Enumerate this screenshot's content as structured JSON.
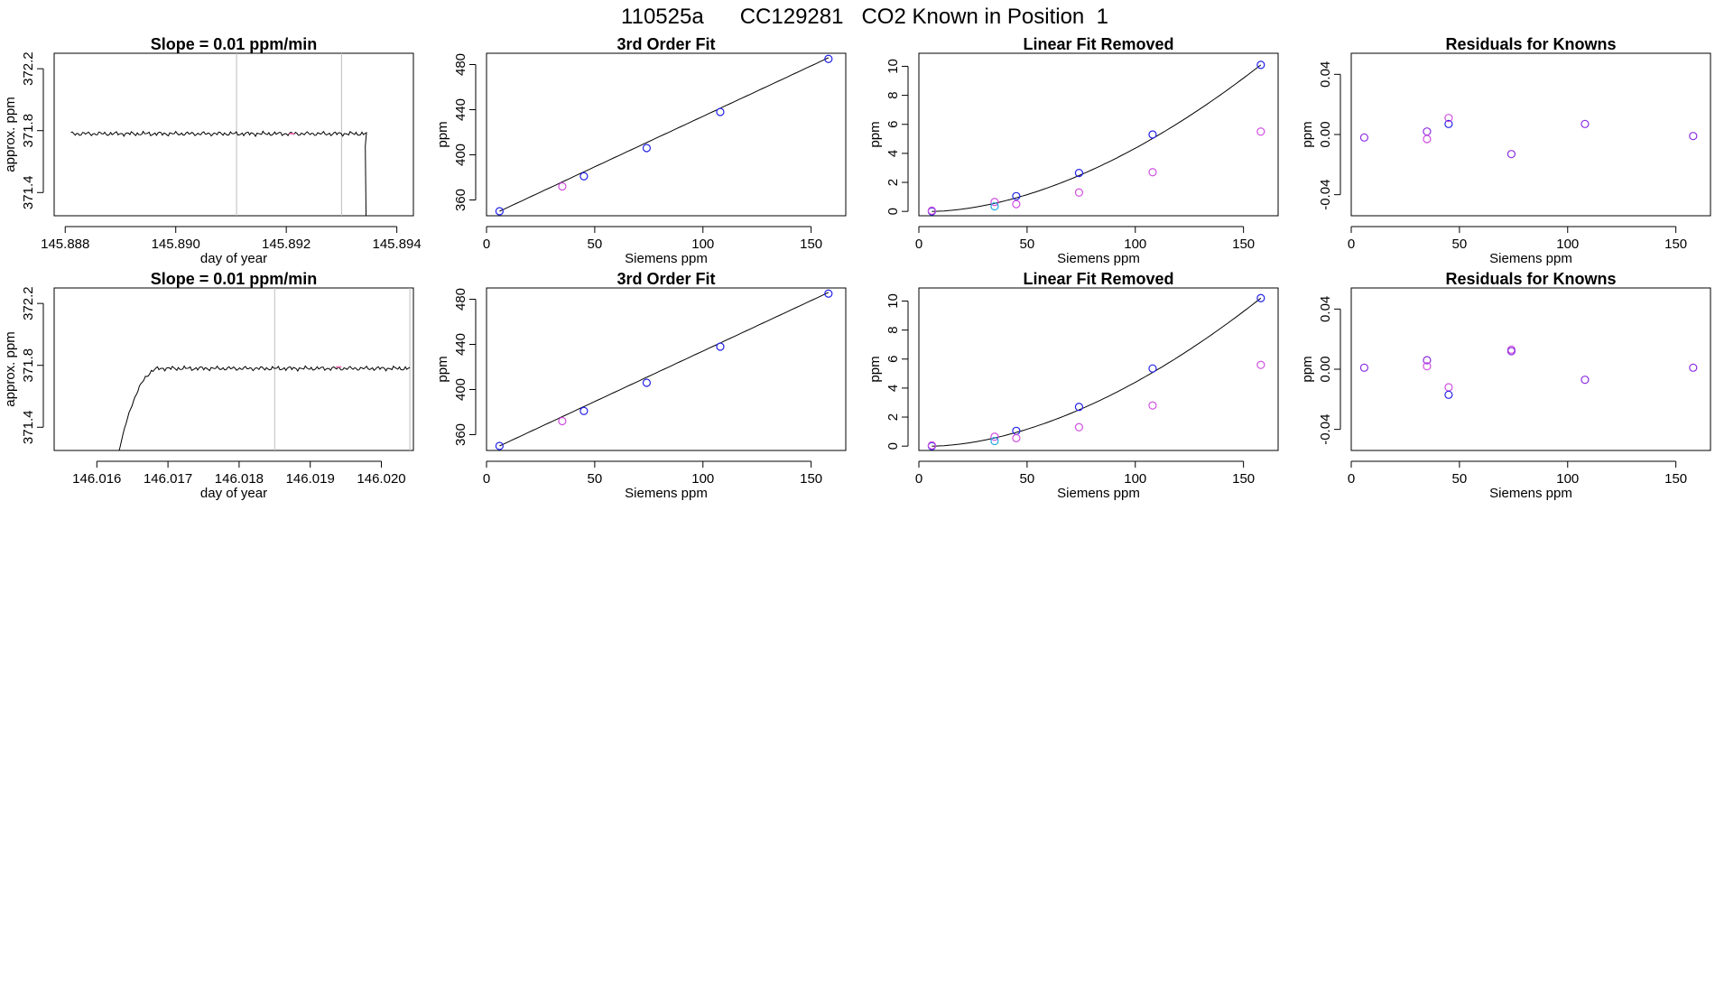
{
  "figure_title": "110525a      CC129281   CO2 Known in Position  1",
  "colors": {
    "line": "#000000",
    "frame": "#000000",
    "vline": "#bebebe",
    "blue": "#2222e6",
    "purple": "#8a2be2",
    "magenta": "#d04ee0",
    "cyan": "#22a6dd"
  },
  "chart_data": [
    {
      "id": "r1-timeseries",
      "type": "line",
      "title": "Slope =  0.01  ppm/min",
      "xlabel": "day of year",
      "ylabel": "approx. ppm",
      "xlim": [
        145.8878,
        145.8943
      ],
      "ylim": [
        371.25,
        372.3
      ],
      "xticks": [
        145.888,
        145.89,
        145.892,
        145.894
      ],
      "xtick_labels": [
        "145.888",
        "145.890",
        "145.892",
        "145.894"
      ],
      "yticks": [
        371.4,
        371.8,
        372.2
      ],
      "ytick_labels": [
        "371.4",
        "371.8",
        "372.2"
      ],
      "vlines": [
        145.8911,
        145.893
      ],
      "trace": {
        "start": 145.8881,
        "end": 145.89345,
        "level": 371.78,
        "amplitude": 0.015,
        "drop_start": 145.8934,
        "drop_to": 371.0
      },
      "marks": [
        {
          "x": 145.8921,
          "y": 371.78,
          "color": "#ff69b4"
        }
      ]
    },
    {
      "id": "r1-fit",
      "type": "scatter",
      "title": "3rd Order Fit",
      "xlabel": "Siemens ppm",
      "ylabel": "ppm",
      "xlim": [
        0,
        166
      ],
      "ylim": [
        346,
        490
      ],
      "xticks": [
        0,
        50,
        100,
        150
      ],
      "xtick_labels": [
        "0",
        "50",
        "100",
        "150"
      ],
      "yticks": [
        360,
        400,
        440,
        480
      ],
      "ytick_labels": [
        "360",
        "400",
        "440",
        "480"
      ],
      "curve": {
        "x0": 6,
        "y0": 350,
        "x1": 158,
        "y1": 486
      },
      "points": [
        {
          "x": 6,
          "y": 350,
          "color": "blue"
        },
        {
          "x": 35,
          "y": 372,
          "color": "magenta"
        },
        {
          "x": 45,
          "y": 381,
          "color": "blue"
        },
        {
          "x": 74,
          "y": 406,
          "color": "blue"
        },
        {
          "x": 108,
          "y": 438,
          "color": "blue"
        },
        {
          "x": 158,
          "y": 485,
          "color": "blue"
        }
      ]
    },
    {
      "id": "r1-linear",
      "type": "scatter",
      "title": "Linear Fit Removed",
      "xlabel": "Siemens ppm",
      "ylabel": "ppm",
      "xlim": [
        0,
        166
      ],
      "ylim": [
        -0.3,
        10.9
      ],
      "xticks": [
        0,
        50,
        100,
        150
      ],
      "xtick_labels": [
        "0",
        "50",
        "100",
        "150"
      ],
      "yticks": [
        0,
        2,
        4,
        6,
        8,
        10
      ],
      "ytick_labels": [
        "0",
        "2",
        "4",
        "6",
        "8",
        "10"
      ],
      "curve": {
        "x0": 6,
        "y0": 0,
        "x1": 158,
        "y1": 10.1,
        "power": 1.75
      },
      "points": [
        {
          "x": 6,
          "y": 0.0,
          "color": "blue"
        },
        {
          "x": 6,
          "y": 0.05,
          "color": "magenta"
        },
        {
          "x": 35,
          "y": 0.65,
          "color": "magenta"
        },
        {
          "x": 35,
          "y": 0.35,
          "color": "cyan"
        },
        {
          "x": 45,
          "y": 1.05,
          "color": "blue"
        },
        {
          "x": 45,
          "y": 0.5,
          "color": "magenta"
        },
        {
          "x": 74,
          "y": 2.65,
          "color": "blue"
        },
        {
          "x": 74,
          "y": 1.3,
          "color": "magenta"
        },
        {
          "x": 108,
          "y": 5.3,
          "color": "blue"
        },
        {
          "x": 108,
          "y": 2.7,
          "color": "magenta"
        },
        {
          "x": 158,
          "y": 10.1,
          "color": "blue"
        },
        {
          "x": 158,
          "y": 5.5,
          "color": "magenta"
        }
      ]
    },
    {
      "id": "r1-residuals",
      "type": "scatter",
      "title": "Residuals for Knowns",
      "xlabel": "Siemens ppm",
      "ylabel": "ppm",
      "xlim": [
        0,
        166
      ],
      "ylim": [
        -0.054,
        0.054
      ],
      "xticks": [
        0,
        50,
        100,
        150
      ],
      "xtick_labels": [
        "0",
        "50",
        "100",
        "150"
      ],
      "yticks": [
        -0.04,
        0.0,
        0.04
      ],
      "ytick_labels": [
        "-0.04",
        "0.00",
        "0.04"
      ],
      "points": [
        {
          "x": 6,
          "y": -0.002,
          "color": "purple"
        },
        {
          "x": 35,
          "y": 0.002,
          "color": "purple"
        },
        {
          "x": 35,
          "y": -0.003,
          "color": "magenta"
        },
        {
          "x": 45,
          "y": 0.007,
          "color": "blue"
        },
        {
          "x": 45,
          "y": 0.011,
          "color": "magenta"
        },
        {
          "x": 74,
          "y": -0.013,
          "color": "purple"
        },
        {
          "x": 108,
          "y": 0.007,
          "color": "purple"
        },
        {
          "x": 158,
          "y": -0.001,
          "color": "purple"
        }
      ]
    },
    {
      "id": "r2-timeseries",
      "type": "line",
      "title": "Slope =  0.01  ppm/min",
      "xlabel": "day of year",
      "ylabel": "approx. ppm",
      "xlim": [
        146.0154,
        146.02045
      ],
      "ylim": [
        371.25,
        372.3
      ],
      "xticks": [
        146.016,
        146.017,
        146.018,
        146.019,
        146.02
      ],
      "xtick_labels": [
        "146.016",
        "146.017",
        "146.018",
        "146.019",
        "146.020"
      ],
      "yticks": [
        371.4,
        371.8,
        372.2
      ],
      "ytick_labels": [
        "371.4",
        "371.8",
        "372.2"
      ],
      "vlines": [
        146.0185,
        146.0204
      ],
      "trace": {
        "start": 146.0162,
        "end": 146.0204,
        "level": 371.78,
        "amplitude": 0.015,
        "rise_from": 371.0,
        "rise_end": 146.0169
      },
      "marks": [
        {
          "x": 146.0194,
          "y": 371.79,
          "color": "#ff69b4"
        }
      ]
    },
    {
      "id": "r2-fit",
      "type": "scatter",
      "title": "3rd Order Fit",
      "xlabel": "Siemens ppm",
      "ylabel": "ppm",
      "xlim": [
        0,
        166
      ],
      "ylim": [
        346,
        490
      ],
      "xticks": [
        0,
        50,
        100,
        150
      ],
      "xtick_labels": [
        "0",
        "50",
        "100",
        "150"
      ],
      "yticks": [
        360,
        400,
        440,
        480
      ],
      "ytick_labels": [
        "360",
        "400",
        "440",
        "480"
      ],
      "curve": {
        "x0": 6,
        "y0": 350,
        "x1": 158,
        "y1": 486
      },
      "points": [
        {
          "x": 6,
          "y": 350,
          "color": "blue"
        },
        {
          "x": 35,
          "y": 372,
          "color": "magenta"
        },
        {
          "x": 45,
          "y": 381,
          "color": "blue"
        },
        {
          "x": 74,
          "y": 406,
          "color": "blue"
        },
        {
          "x": 108,
          "y": 438,
          "color": "blue"
        },
        {
          "x": 158,
          "y": 485,
          "color": "blue"
        }
      ]
    },
    {
      "id": "r2-linear",
      "type": "scatter",
      "title": "Linear Fit Removed",
      "xlabel": "Siemens ppm",
      "ylabel": "ppm",
      "xlim": [
        0,
        166
      ],
      "ylim": [
        -0.3,
        10.9
      ],
      "xticks": [
        0,
        50,
        100,
        150
      ],
      "xtick_labels": [
        "0",
        "50",
        "100",
        "150"
      ],
      "yticks": [
        0,
        2,
        4,
        6,
        8,
        10
      ],
      "ytick_labels": [
        "0",
        "2",
        "4",
        "6",
        "8",
        "10"
      ],
      "curve": {
        "x0": 6,
        "y0": 0,
        "x1": 158,
        "y1": 10.2,
        "power": 1.75
      },
      "points": [
        {
          "x": 6,
          "y": 0.0,
          "color": "blue"
        },
        {
          "x": 6,
          "y": 0.05,
          "color": "magenta"
        },
        {
          "x": 35,
          "y": 0.65,
          "color": "magenta"
        },
        {
          "x": 35,
          "y": 0.35,
          "color": "cyan"
        },
        {
          "x": 45,
          "y": 1.05,
          "color": "blue"
        },
        {
          "x": 45,
          "y": 0.55,
          "color": "magenta"
        },
        {
          "x": 74,
          "y": 2.7,
          "color": "blue"
        },
        {
          "x": 74,
          "y": 1.3,
          "color": "magenta"
        },
        {
          "x": 108,
          "y": 5.35,
          "color": "blue"
        },
        {
          "x": 108,
          "y": 2.8,
          "color": "magenta"
        },
        {
          "x": 158,
          "y": 10.2,
          "color": "blue"
        },
        {
          "x": 158,
          "y": 5.6,
          "color": "magenta"
        }
      ]
    },
    {
      "id": "r2-residuals",
      "type": "scatter",
      "title": "Residuals for Knowns",
      "xlabel": "Siemens ppm",
      "ylabel": "ppm",
      "xlim": [
        0,
        166
      ],
      "ylim": [
        -0.054,
        0.054
      ],
      "xticks": [
        0,
        50,
        100,
        150
      ],
      "xtick_labels": [
        "0",
        "50",
        "100",
        "150"
      ],
      "yticks": [
        -0.04,
        0.0,
        0.04
      ],
      "ytick_labels": [
        "-0.04",
        "0.00",
        "0.04"
      ],
      "points": [
        {
          "x": 6,
          "y": 0.001,
          "color": "purple"
        },
        {
          "x": 35,
          "y": 0.006,
          "color": "purple"
        },
        {
          "x": 35,
          "y": 0.002,
          "color": "magenta"
        },
        {
          "x": 45,
          "y": -0.012,
          "color": "magenta"
        },
        {
          "x": 45,
          "y": -0.017,
          "color": "blue"
        },
        {
          "x": 74,
          "y": 0.013,
          "color": "magenta"
        },
        {
          "x": 74,
          "y": 0.012,
          "color": "purple"
        },
        {
          "x": 108,
          "y": -0.007,
          "color": "purple"
        },
        {
          "x": 158,
          "y": 0.001,
          "color": "purple"
        }
      ]
    }
  ]
}
